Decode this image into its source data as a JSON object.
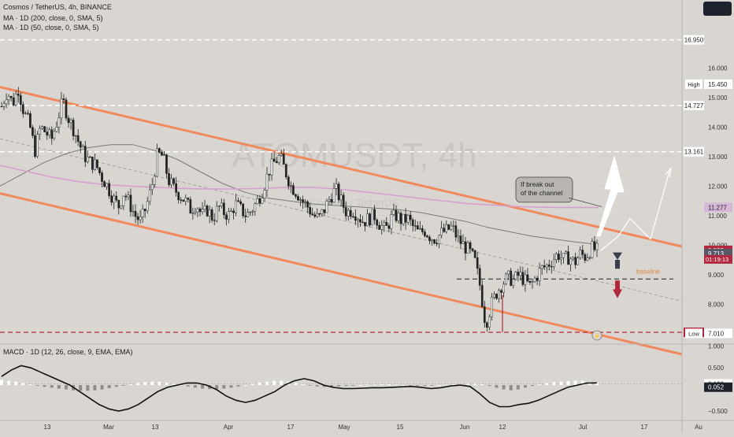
{
  "header": {
    "title": "Cosmos / TetherUS, 4h, BINANCE",
    "ma200": "MA · 1D (200, close, 0, SMA, 5)",
    "ma50": "MA · 1D (50, close, 0, SMA, 5)"
  },
  "macd": {
    "label": "MACD · 1D (12, 26, close, 9, EMA, EMA)",
    "ticks": [
      1.0,
      0.5,
      -0.5
    ],
    "tick_labels": [
      "1.000",
      "0.500",
      "−0.500"
    ],
    "markers": [
      {
        "value": 0.13,
        "label": "0.130",
        "bg": "#ffffff",
        "fg": "#222222"
      },
      {
        "value": 0.052,
        "label": "0.052",
        "bg": "#1e222d",
        "fg": "#ffffff"
      }
    ],
    "histogram": [
      0.12,
      0.1,
      0.08,
      0.05,
      0.02,
      -0.01,
      -0.04,
      -0.06,
      -0.08,
      -0.1,
      -0.12,
      -0.13,
      -0.13,
      -0.12,
      -0.1,
      -0.07,
      -0.04,
      -0.01,
      0.02,
      0.05,
      0.07,
      0.08,
      0.08,
      0.06,
      0.03,
      0.0,
      -0.03,
      -0.06,
      -0.08,
      -0.09,
      -0.09,
      -0.08,
      -0.06,
      -0.03,
      0.0,
      0.03,
      0.06,
      0.08,
      0.1,
      0.1,
      0.08,
      0.05,
      0.02,
      -0.01,
      -0.03,
      -0.04,
      -0.04,
      -0.03,
      -0.02,
      -0.01,
      0.0,
      0.01,
      0.01,
      0.02,
      0.02,
      0.01,
      0.0,
      -0.01,
      -0.02,
      -0.02,
      -0.01,
      0.0,
      0.01,
      0.02,
      0.02,
      0.03,
      0.03,
      0.02,
      -0.02,
      -0.06,
      -0.1,
      -0.12,
      -0.1,
      -0.06,
      -0.02,
      0.02,
      0.05,
      0.07,
      0.08,
      0.09,
      0.1,
      0.1,
      0.08,
      0.06
    ],
    "line": [
      0.2,
      0.35,
      0.45,
      0.4,
      0.3,
      0.2,
      0.1,
      0.0,
      -0.15,
      -0.3,
      -0.45,
      -0.55,
      -0.6,
      -0.55,
      -0.45,
      -0.3,
      -0.15,
      -0.05,
      0.0,
      0.05,
      0.05,
      0.0,
      -0.1,
      -0.25,
      -0.35,
      -0.4,
      -0.35,
      -0.25,
      -0.15,
      0.0,
      0.1,
      0.15,
      0.1,
      0.0,
      -0.05,
      -0.08,
      -0.08,
      -0.07,
      -0.06,
      -0.06,
      -0.05,
      -0.04,
      -0.03,
      -0.05,
      -0.08,
      -0.06,
      -0.02,
      0.0,
      -0.03,
      -0.2,
      -0.4,
      -0.5,
      -0.5,
      -0.45,
      -0.42,
      -0.35,
      -0.25,
      -0.15,
      -0.05,
      0.0,
      0.05,
      0.052
    ]
  },
  "chart_data": {
    "type": "candlestick",
    "title": "Cosmos / TetherUS, 4h, BINANCE",
    "watermark": "ATOMUSDT, 4h",
    "watermark_sub": "Cosmos / TetherUS",
    "ylim": [
      6.7,
      18.3
    ],
    "y_ticks": [
      16.0,
      15.0,
      14.0,
      13.0,
      12.0,
      11.0,
      10.0,
      9.0,
      8.0
    ],
    "y_tick_labels": [
      "16.000",
      "15.000",
      "14.000",
      "13.000",
      "12.000",
      "11.000",
      "10.000",
      "9.000",
      "8.000"
    ],
    "x_labels": [
      "13",
      "Mar",
      "13",
      "Apr",
      "17",
      "May",
      "15",
      "Jun",
      "12",
      "Jul",
      "17",
      "Au"
    ],
    "close_path": [
      14.7,
      15.2,
      14.8,
      15.3,
      14.5,
      14.1,
      13.2,
      14.0,
      13.8,
      13.6,
      14.2,
      14.9,
      14.3,
      13.9,
      13.4,
      13.0,
      12.8,
      12.7,
      12.3,
      12.0,
      11.6,
      11.3,
      11.8,
      11.4,
      11.0,
      10.8,
      11.3,
      12.0,
      13.1,
      13.0,
      12.2,
      11.9,
      11.7,
      11.5,
      11.2,
      11.4,
      11.0,
      11.2,
      10.9,
      11.3,
      11.1,
      11.0,
      11.4,
      11.2,
      11.0,
      11.2,
      11.5,
      11.9,
      12.5,
      12.8,
      13.0,
      12.5,
      12.0,
      11.8,
      11.5,
      11.3,
      11.0,
      10.9,
      11.2,
      11.6,
      11.9,
      11.5,
      11.1,
      11.2,
      11.0,
      10.8,
      10.9,
      11.0,
      10.7,
      10.5,
      10.9,
      11.0,
      10.8,
      10.9,
      10.6,
      10.4,
      10.5,
      10.3,
      10.2,
      10.4,
      10.5,
      10.6,
      10.2,
      10.0,
      9.8,
      9.5,
      8.6,
      7.3,
      8.0,
      8.4,
      8.7,
      8.9,
      8.8,
      9.0,
      8.8,
      8.6,
      8.9,
      9.2,
      9.3,
      9.5,
      9.7,
      9.5,
      9.6,
      9.4,
      9.7,
      9.6,
      9.9,
      9.82
    ],
    "candle_seed": 7,
    "ma200_1d": [
      12.0,
      12.4,
      12.8,
      13.1,
      13.3,
      13.4,
      13.4,
      13.2,
      12.9,
      12.5,
      12.1,
      11.8,
      11.6,
      11.5,
      11.4,
      11.35,
      11.3,
      11.25,
      11.2,
      11.1,
      10.95,
      10.8,
      10.6,
      10.45,
      10.3,
      10.2,
      10.1,
      10.02
    ],
    "ma50_1d": [
      12.7,
      12.5,
      12.3,
      12.15,
      12.05,
      12.0,
      11.95,
      11.92,
      11.9,
      11.9,
      11.92,
      11.95,
      11.95,
      11.9,
      11.8,
      11.7,
      11.6,
      11.5,
      11.4,
      11.35,
      11.3,
      11.28,
      11.27,
      11.27
    ],
    "levels": [
      {
        "value": 16.95,
        "label": "16.950",
        "style": "white-dashed",
        "tag_bg": "#ffffff",
        "tag_fg": "#222222"
      },
      {
        "value": 14.727,
        "label": "14.727",
        "style": "white-dashed",
        "tag_bg": "#ffffff",
        "tag_fg": "#222222"
      },
      {
        "value": 13.161,
        "label": "13.161",
        "style": "white-dashed",
        "tag_bg": "#ffffff",
        "tag_fg": "#222222"
      },
      {
        "value": 7.047,
        "label": "7.047",
        "style": "red-dashed",
        "tag_bg": "#b2283c",
        "tag_fg": "#ffffff"
      },
      {
        "value": 8.85,
        "label": "baseline",
        "style": "dark-dashed",
        "tag_bg": "",
        "tag_fg": "#e0883c"
      }
    ],
    "price_tags": [
      {
        "value": 15.45,
        "label": "15.450",
        "prefix": "High",
        "bg": "#ffffff",
        "fg": "#222222"
      },
      {
        "value": 11.277,
        "label": "11.277",
        "prefix": "",
        "bg": "#d6b7d8",
        "fg": "#222222"
      },
      {
        "value": 9.823,
        "label": "9.823",
        "prefix": "",
        "bg": "#b2283c",
        "fg": "#ffffff"
      },
      {
        "value": 9.713,
        "label": "9.713",
        "prefix": "",
        "bg": "#555a66",
        "fg": "#ffffff"
      },
      {
        "value": 7.01,
        "label": "7.010",
        "prefix": "Low",
        "bg": "#ffffff",
        "fg": "#222222"
      }
    ],
    "countdown": "01:19:13",
    "callout": "If break out\nof the channel",
    "colors": {
      "up": "#222222",
      "down": "#222222",
      "channel": "#f08a5d",
      "ma200": "#7a7a7a",
      "ma50": "#d8a0d0",
      "background": "#d9d6d1"
    }
  }
}
